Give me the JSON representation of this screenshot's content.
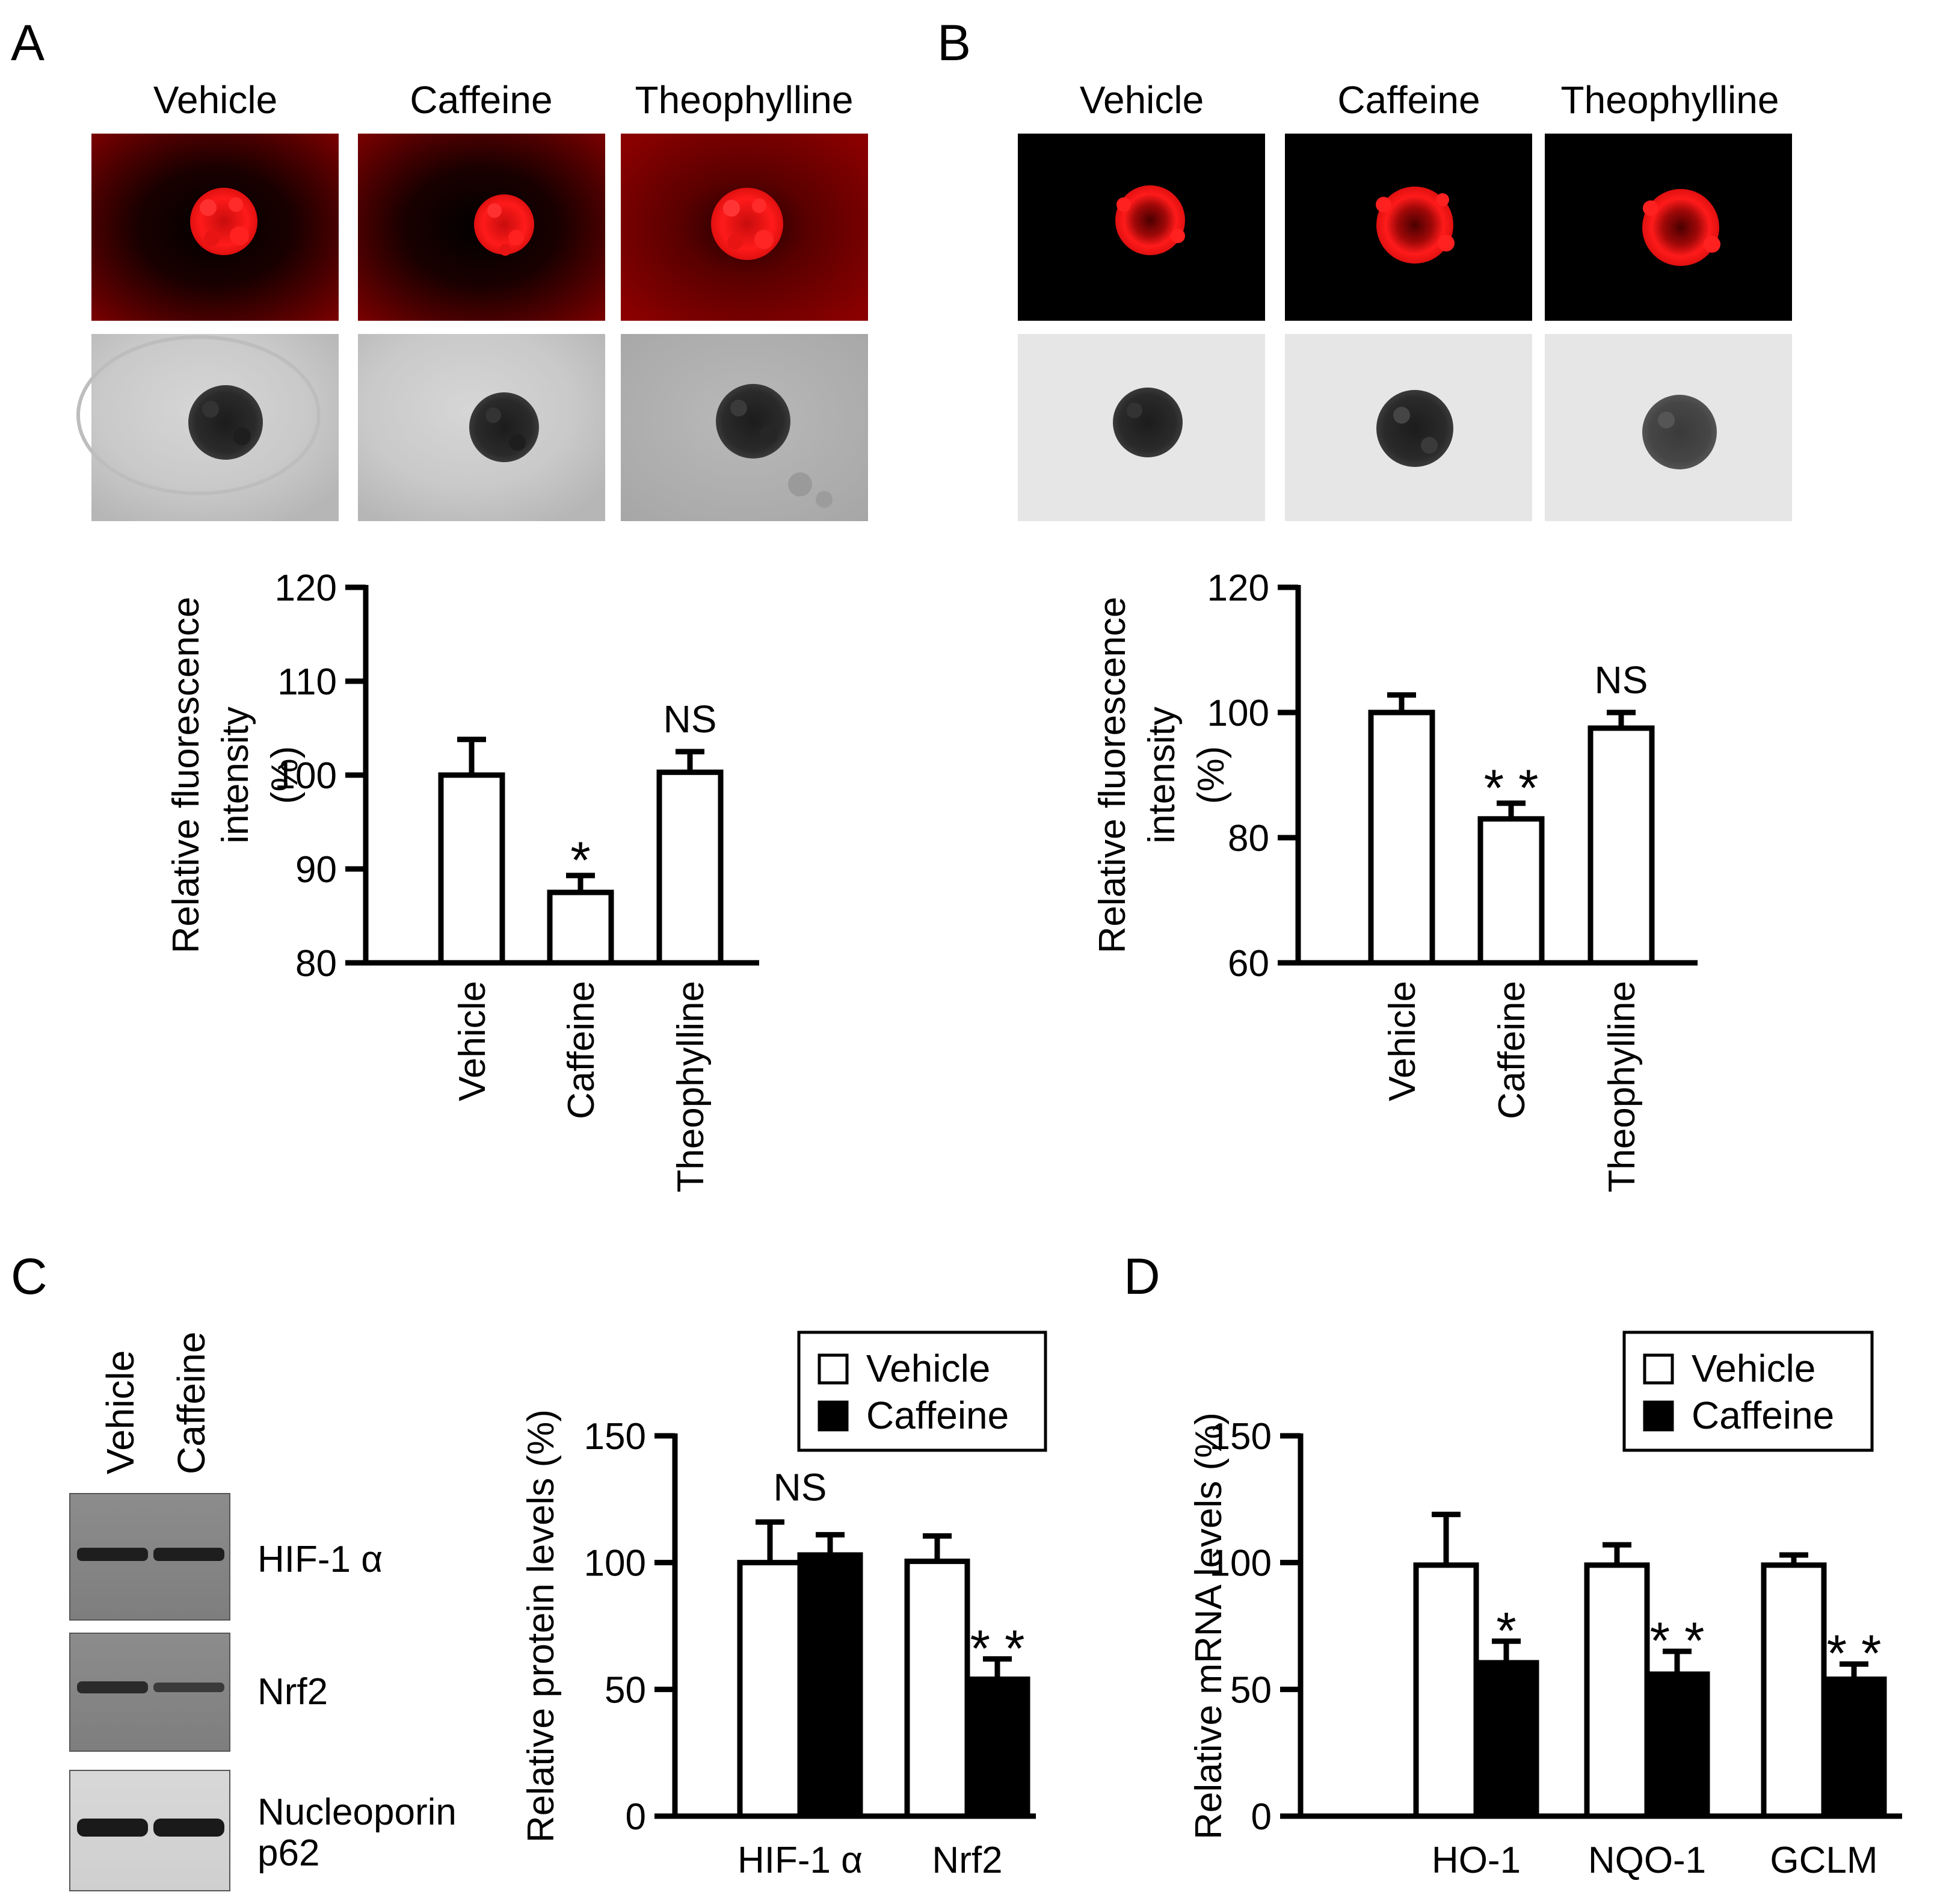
{
  "panels": {
    "A": {
      "label": "A",
      "image_columns": [
        "Vehicle",
        "Caffeine",
        "Theophylline"
      ]
    },
    "B": {
      "label": "B",
      "image_columns": [
        "Vehicle",
        "Caffeine",
        "Theophylline"
      ]
    },
    "C": {
      "label": "C",
      "blot_lanes": [
        "Vehicle",
        "Caffeine"
      ],
      "blot_bands": [
        "HIF-1 α",
        "Nrf2",
        "Nucleoporin",
        "p62"
      ]
    },
    "D": {
      "label": "D"
    }
  },
  "colors": {
    "fluorescence_red": "#e01010",
    "background_dark_red": "#6a0000",
    "brightfield_gray": "#c8c8c8",
    "bar_open": "#ffffff",
    "bar_filled": "#000000"
  },
  "chart_data": [
    {
      "id": "A",
      "type": "bar",
      "categories": [
        "Vehicle",
        "Caffeine",
        "Theophylline"
      ],
      "series": [
        {
          "values": [
            100,
            87.5,
            100.3
          ],
          "errors": [
            3.8,
            1.8,
            2.2
          ]
        }
      ],
      "significance": [
        "",
        "*",
        "NS"
      ],
      "ylabel": "Relative fluorescence intensity (%)",
      "ylabel_lines": [
        "Relative fluorescence",
        "intensity",
        "(%)"
      ],
      "ylim": [
        80,
        120
      ],
      "yticks": [
        80,
        90,
        100,
        110,
        120
      ],
      "ytick_labels": [
        "80",
        "90",
        "100",
        "110",
        "120"
      ]
    },
    {
      "id": "B",
      "type": "bar",
      "categories": [
        "Vehicle",
        "Caffeine",
        "Theophylline"
      ],
      "series": [
        {
          "values": [
            100,
            83,
            97.5
          ],
          "errors": [
            2.8,
            2.5,
            2.5
          ]
        }
      ],
      "significance": [
        "",
        "**",
        "NS"
      ],
      "ylabel": "Relative fluorescence intensity (%)",
      "ylabel_lines": [
        "Relative fluorescence",
        "intensity",
        "(%)"
      ],
      "ylim": [
        60,
        120
      ],
      "yticks": [
        60,
        80,
        100,
        120
      ],
      "ytick_labels": [
        "60",
        "80",
        "100",
        "120"
      ]
    },
    {
      "id": "C",
      "type": "bar",
      "categories": [
        "HIF-1 α",
        "Nrf2"
      ],
      "series": [
        {
          "name": "Vehicle",
          "values": [
            100,
            100.5
          ],
          "errors": [
            16,
            10
          ]
        },
        {
          "name": "Caffeine",
          "values": [
            103,
            54
          ],
          "errors": [
            8,
            8
          ]
        }
      ],
      "significance": [
        "NS",
        "**"
      ],
      "ylabel": "Relative protein levels (%)",
      "ylim": [
        0,
        150
      ],
      "yticks": [
        0,
        50,
        100,
        150
      ],
      "ytick_labels": [
        "0",
        "50",
        "100",
        "150"
      ],
      "legend": [
        "Vehicle",
        "Caffeine"
      ]
    },
    {
      "id": "D",
      "type": "bar",
      "categories": [
        "HO-1",
        "NQO-1",
        "GCLM"
      ],
      "series": [
        {
          "name": "Vehicle",
          "values": [
            99,
            99,
            99
          ],
          "errors": [
            20,
            8,
            4
          ]
        },
        {
          "name": "Caffeine",
          "values": [
            60.5,
            56,
            54
          ],
          "errors": [
            8.5,
            9,
            6
          ]
        }
      ],
      "significance": [
        "*",
        "**",
        "**"
      ],
      "ylabel": "Relative mRNA levels (%)",
      "ylim": [
        0,
        150
      ],
      "yticks": [
        0,
        50,
        100,
        150
      ],
      "ytick_labels": [
        "0",
        "50",
        "100",
        "150"
      ],
      "legend": [
        "Vehicle",
        "Caffeine"
      ]
    }
  ]
}
